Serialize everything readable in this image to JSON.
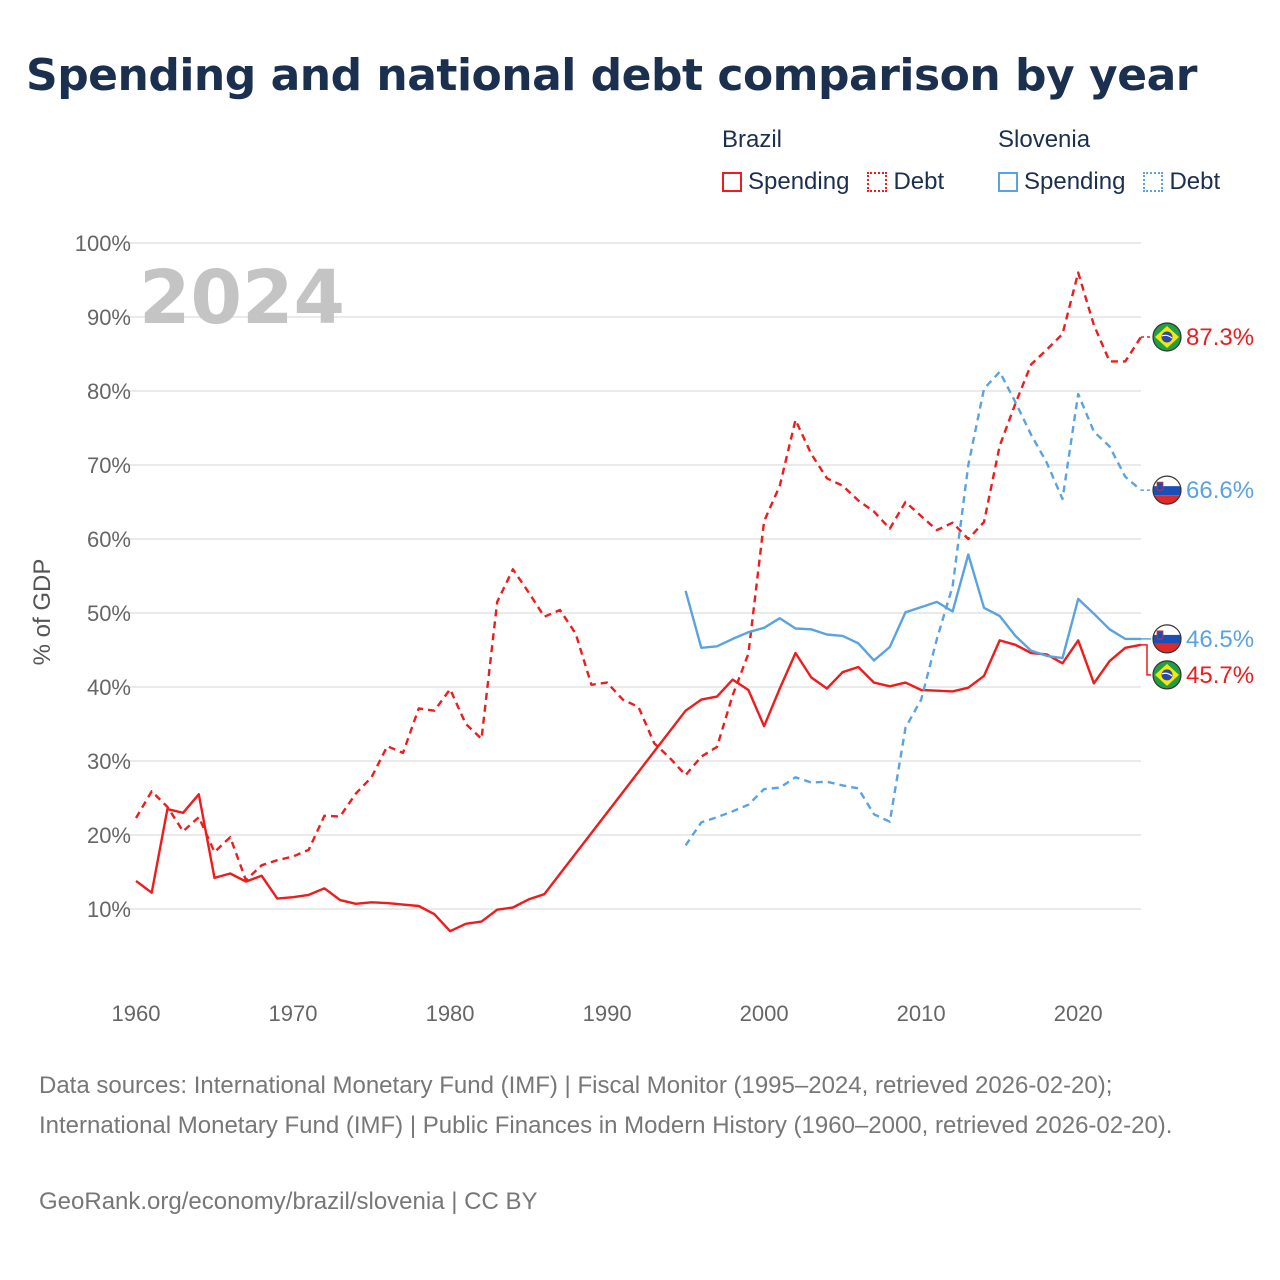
{
  "title": "Spending and national debt comparison by year",
  "year_label": "2024",
  "legend": {
    "brazil": {
      "name": "Brazil",
      "spending": "Spending",
      "debt": "Debt",
      "color": "#ee1c1c"
    },
    "slovenia": {
      "name": "Slovenia",
      "spending": "Spending",
      "debt": "Debt",
      "color": "#5ba3e0"
    }
  },
  "end_labels": {
    "brazil_debt": "87.3%",
    "slovenia_debt": "66.6%",
    "slovenia_spending": "46.5%",
    "brazil_spending": "45.7%"
  },
  "footer": {
    "sources": "Data sources: International Monetary Fund (IMF) | Fiscal Monitor (1995–2024, retrieved 2026-02-20); International Monetary Fund (IMF) | Public Finances in Modern History (1960–2000, retrieved 2026-02-20).",
    "credit": "GeoRank.org/economy/brazil/slovenia | CC BY"
  },
  "chart_data": {
    "type": "line",
    "title": "Spending and national debt comparison by year",
    "xlabel": "",
    "ylabel": "% of GDP",
    "xlim": [
      1960,
      2024
    ],
    "ylim": [
      0,
      100
    ],
    "x_ticks": [
      1960,
      1970,
      1980,
      1990,
      2000,
      2010,
      2020
    ],
    "y_ticks": [
      10,
      20,
      30,
      40,
      50,
      60,
      70,
      80,
      90,
      100
    ],
    "y_tick_labels": [
      "10%",
      "20%",
      "30%",
      "40%",
      "50%",
      "60%",
      "70%",
      "80%",
      "90%",
      "100%"
    ],
    "grid": true,
    "series": [
      {
        "name": "Brazil Spending",
        "country": "Brazil",
        "kind": "Spending",
        "color": "#ee1c1c",
        "dash": false,
        "x": [
          1960,
          1961,
          1962,
          1963,
          1964,
          1965,
          1966,
          1967,
          1968,
          1969,
          1970,
          1971,
          1972,
          1973,
          1974,
          1975,
          1976,
          1977,
          1978,
          1979,
          1980,
          1981,
          1982,
          1983,
          1984,
          1985,
          1986,
          1995,
          1996,
          1997,
          1998,
          1999,
          2000,
          2001,
          2002,
          2003,
          2004,
          2005,
          2006,
          2007,
          2008,
          2009,
          2010,
          2011,
          2012,
          2013,
          2014,
          2015,
          2016,
          2017,
          2018,
          2019,
          2020,
          2021,
          2022,
          2023,
          2024
        ],
        "values": [
          13.8,
          12.2,
          23.5,
          23.0,
          25.5,
          14.2,
          14.8,
          13.7,
          14.5,
          11.4,
          11.6,
          11.9,
          12.8,
          11.2,
          10.7,
          10.9,
          10.8,
          10.6,
          10.4,
          9.3,
          7.0,
          8.0,
          8.3,
          9.9,
          10.2,
          11.3,
          12.0,
          36.8,
          38.3,
          38.7,
          41.0,
          39.6,
          34.7,
          39.8,
          44.6,
          41.3,
          39.8,
          42.0,
          42.7,
          40.6,
          40.1,
          40.6,
          39.6,
          39.5,
          39.4,
          39.9,
          41.5,
          46.3,
          45.7,
          44.6,
          44.4,
          43.2,
          46.3,
          40.5,
          43.5,
          45.3,
          45.7
        ]
      },
      {
        "name": "Brazil Debt",
        "country": "Brazil",
        "kind": "Debt",
        "color": "#ee1c1c",
        "dash": true,
        "x": [
          1960,
          1961,
          1962,
          1963,
          1964,
          1965,
          1966,
          1967,
          1968,
          1969,
          1970,
          1971,
          1972,
          1973,
          1974,
          1975,
          1976,
          1977,
          1978,
          1979,
          1980,
          1981,
          1982,
          1983,
          1984,
          1985,
          1986,
          1987,
          1988,
          1989,
          1990,
          1991,
          1992,
          1993,
          1994,
          1995,
          1996,
          1997,
          1998,
          1999,
          2000,
          2001,
          2002,
          2003,
          2004,
          2005,
          2006,
          2007,
          2008,
          2009,
          2010,
          2011,
          2012,
          2013,
          2014,
          2015,
          2016,
          2017,
          2018,
          2019,
          2020,
          2021,
          2022,
          2023,
          2024
        ],
        "values": [
          22.3,
          25.9,
          23.8,
          20.5,
          22.4,
          17.7,
          19.7,
          13.9,
          15.9,
          16.6,
          17.1,
          18.0,
          22.6,
          22.5,
          25.6,
          27.8,
          32.0,
          31.1,
          37.1,
          36.8,
          39.7,
          35.0,
          33.0,
          51.5,
          55.9,
          52.8,
          49.5,
          50.4,
          47.2,
          40.3,
          40.6,
          38.3,
          37.3,
          32.4,
          30.4,
          28.1,
          30.6,
          31.9,
          38.9,
          44.5,
          62.4,
          67.2,
          76.1,
          71.5,
          68.2,
          67.2,
          65.2,
          63.7,
          61.4,
          65.0,
          63.1,
          61.2,
          62.2,
          60.0,
          62.3,
          72.6,
          78.3,
          83.6,
          85.6,
          87.7,
          96.0,
          88.9,
          84.0,
          84.0,
          87.3
        ]
      },
      {
        "name": "Slovenia Spending",
        "country": "Slovenia",
        "kind": "Spending",
        "color": "#5ba3e0",
        "dash": false,
        "x": [
          1995,
          1996,
          1997,
          1998,
          1999,
          2000,
          2001,
          2002,
          2003,
          2004,
          2005,
          2006,
          2007,
          2008,
          2009,
          2010,
          2011,
          2012,
          2013,
          2014,
          2015,
          2016,
          2017,
          2018,
          2019,
          2020,
          2021,
          2022,
          2023,
          2024
        ],
        "values": [
          53.0,
          45.3,
          45.5,
          46.5,
          47.4,
          48.0,
          49.3,
          47.9,
          47.8,
          47.1,
          46.9,
          45.9,
          43.6,
          45.4,
          50.1,
          50.8,
          51.5,
          50.2,
          57.9,
          50.7,
          49.6,
          46.9,
          44.9,
          44.2,
          43.9,
          51.9,
          49.9,
          47.8,
          46.5,
          46.5
        ]
      },
      {
        "name": "Slovenia Debt",
        "country": "Slovenia",
        "kind": "Debt",
        "color": "#5ba3e0",
        "dash": true,
        "x": [
          1995,
          1996,
          1997,
          1998,
          1999,
          2000,
          2001,
          2002,
          2003,
          2004,
          2005,
          2006,
          2007,
          2008,
          2009,
          2010,
          2011,
          2012,
          2013,
          2014,
          2015,
          2016,
          2017,
          2018,
          2019,
          2020,
          2021,
          2022,
          2023,
          2024
        ],
        "values": [
          18.6,
          21.7,
          22.4,
          23.2,
          24.1,
          26.2,
          26.4,
          27.8,
          27.1,
          27.2,
          26.7,
          26.3,
          22.8,
          21.8,
          34.5,
          38.3,
          46.5,
          53.6,
          70.0,
          80.3,
          82.6,
          78.5,
          74.1,
          70.3,
          65.4,
          79.6,
          74.5,
          72.5,
          68.4,
          66.6
        ]
      }
    ]
  }
}
